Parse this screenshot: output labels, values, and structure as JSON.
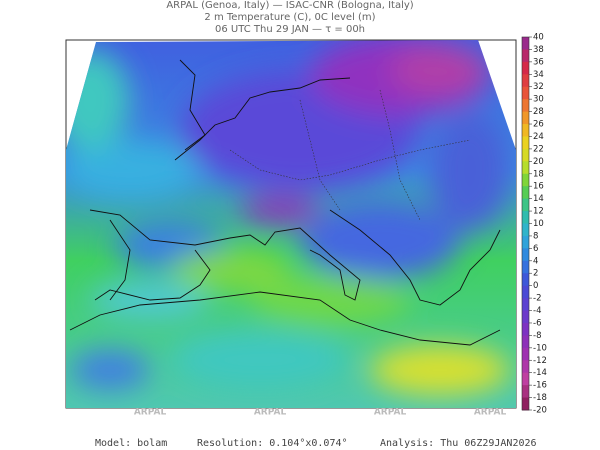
{
  "header": {
    "line1": "ARPAL (Genoa, Italy)  —  ISAC-CNR (Bologna, Italy)",
    "line2": "2 m Temperature (C), 0C level (m)",
    "line3": "06 UTC Thu 29 JAN  —  τ = 00h"
  },
  "colorbar": {
    "labels": [
      40,
      38,
      36,
      34,
      32,
      30,
      28,
      26,
      24,
      22,
      20,
      18,
      16,
      14,
      12,
      10,
      8,
      6,
      4,
      2,
      0,
      -2,
      -4,
      -6,
      -8,
      -10,
      -12,
      -14,
      -16,
      -18,
      -20
    ]
  },
  "watermarks": [
    "ARPAL",
    "ARPAL",
    "ARPAL",
    "ARPAL"
  ],
  "footer": {
    "model": "Model: bolam",
    "resolution": "Resolution: 0.104°x0.074°",
    "analysis": "Analysis: Thu 06Z29JAN2026"
  }
}
